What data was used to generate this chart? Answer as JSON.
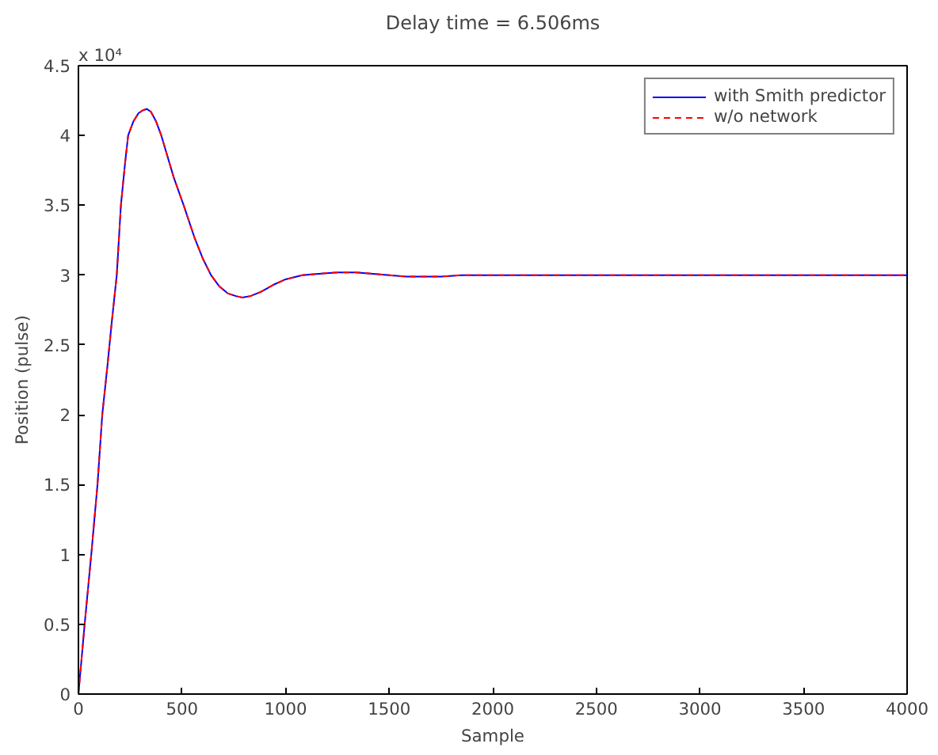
{
  "chart_data": {
    "type": "line",
    "title": "Delay time = 6.506ms",
    "xlabel": "Sample",
    "ylabel": "Position (pulse)",
    "annotations": [
      "x 10⁴"
    ],
    "x": [
      0,
      15,
      30,
      62,
      92,
      115,
      140,
      160,
      185,
      205,
      225,
      240,
      265,
      290,
      310,
      330,
      350,
      375,
      400,
      430,
      460,
      508,
      560,
      600,
      640,
      680,
      720,
      760,
      790,
      830,
      880,
      940,
      1000,
      1080,
      1160,
      1250,
      1340,
      1420,
      1500,
      1580,
      1650,
      1750,
      1850,
      1950,
      2100,
      2300,
      2600,
      3000,
      3500,
      4000
    ],
    "series": [
      {
        "name": "with Smith predictor",
        "color": "#0000ff",
        "line_style": "solid",
        "values": [
          0,
          0.25,
          0.5,
          1.0,
          1.5,
          2.0,
          2.35,
          2.65,
          3.0,
          3.5,
          3.8,
          4.0,
          4.1,
          4.16,
          4.18,
          4.19,
          4.17,
          4.1,
          4.0,
          3.85,
          3.7,
          3.5,
          3.27,
          3.12,
          3.0,
          2.92,
          2.87,
          2.85,
          2.84,
          2.85,
          2.88,
          2.93,
          2.97,
          3.0,
          3.01,
          3.02,
          3.02,
          3.01,
          3.0,
          2.99,
          2.99,
          2.99,
          3.0,
          3.0,
          3.0,
          3.0,
          3.0,
          3.0,
          3.0,
          3.0
        ]
      },
      {
        "name": "w/o network",
        "color": "#ff0000",
        "line_style": "dashed",
        "values": [
          0,
          0.25,
          0.5,
          1.0,
          1.5,
          2.0,
          2.35,
          2.65,
          3.0,
          3.5,
          3.8,
          4.0,
          4.1,
          4.16,
          4.18,
          4.19,
          4.17,
          4.1,
          4.0,
          3.85,
          3.7,
          3.5,
          3.27,
          3.12,
          3.0,
          2.92,
          2.87,
          2.85,
          2.84,
          2.85,
          2.88,
          2.93,
          2.97,
          3.0,
          3.01,
          3.02,
          3.02,
          3.01,
          3.0,
          2.99,
          2.99,
          2.99,
          3.0,
          3.0,
          3.0,
          3.0,
          3.0,
          3.0,
          3.0,
          3.0
        ]
      }
    ],
    "xlim": [
      0,
      4000
    ],
    "xticks": [
      0,
      500,
      1000,
      1500,
      2000,
      2500,
      3000,
      3500,
      4000
    ],
    "ylim": [
      0,
      4.5
    ],
    "yticks": [
      0,
      0.5,
      1,
      1.5,
      2,
      2.5,
      3,
      3.5,
      4,
      4.5
    ],
    "grid": false,
    "legend": "top right",
    "marker": "none"
  }
}
